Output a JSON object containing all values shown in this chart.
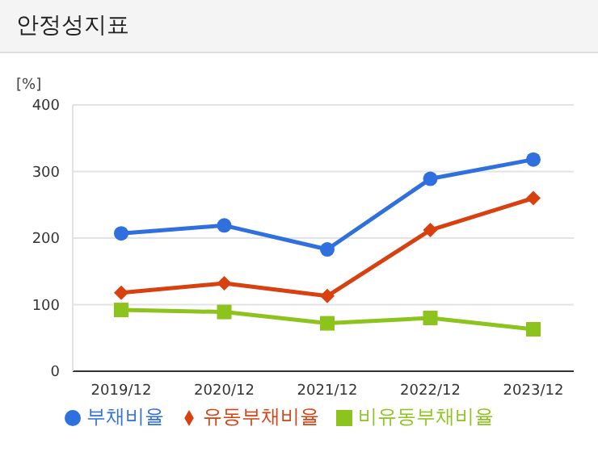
{
  "chart_data": {
    "type": "line",
    "title": "안정성지표",
    "ylabel": "[%]",
    "categories": [
      "2019/12",
      "2020/12",
      "2021/12",
      "2022/12",
      "2023/12"
    ],
    "series": [
      {
        "name": "부채비율",
        "color": "#2f6fde",
        "values": [
          207,
          219,
          183,
          289,
          318
        ],
        "marker": "circle"
      },
      {
        "name": "유동부채비율",
        "color": "#d9400f",
        "values": [
          118,
          132,
          113,
          212,
          260
        ],
        "marker": "diamond"
      },
      {
        "name": "비유동부채비율",
        "color": "#8cc31d",
        "values": [
          92,
          89,
          72,
          80,
          63
        ],
        "marker": "square"
      }
    ],
    "ylim": [
      0,
      400
    ],
    "yticks": [
      0,
      100,
      200,
      300,
      400
    ],
    "grid": "y",
    "legend": "bottom"
  }
}
